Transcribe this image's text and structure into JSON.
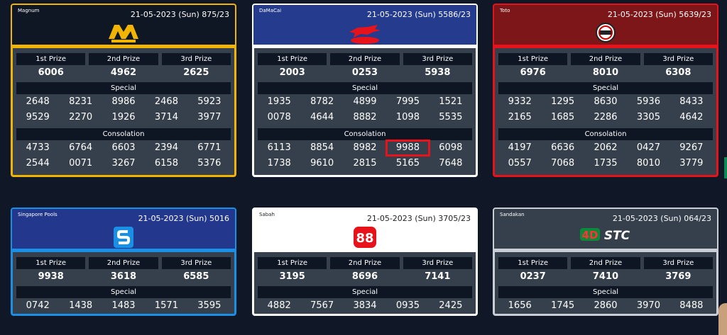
{
  "cards": [
    {
      "key": "magnum",
      "name": "Magnum",
      "date": "21-05-2023 (Sun) 875/23",
      "logo": "magnum",
      "labels": {
        "first": "1st Prize",
        "second": "2nd Prize",
        "third": "3rd Prize",
        "special": "Special",
        "consolation": "Consolation"
      },
      "first": "6006",
      "second": "4962",
      "third": "2625",
      "special": [
        [
          "2648",
          "8231",
          "8986",
          "2468",
          "5923"
        ],
        [
          "9529",
          "2270",
          "1926",
          "3714",
          "3977"
        ]
      ],
      "consolation": [
        [
          "4733",
          "6764",
          "6603",
          "2394",
          "6771"
        ],
        [
          "2544",
          "0071",
          "3267",
          "6158",
          "5376"
        ]
      ]
    },
    {
      "key": "damacai",
      "name": "DaMaCai",
      "date": "21-05-2023 (Sun) 5586/23",
      "logo": "damacai",
      "labels": {
        "first": "1st Prize",
        "second": "2nd Prize",
        "third": "3rd Prize",
        "special": "Special",
        "consolation": "Consolation"
      },
      "first": "2003",
      "second": "0253",
      "third": "5938",
      "special": [
        [
          "1935",
          "8782",
          "4899",
          "7995",
          "1521"
        ],
        [
          "0078",
          "4644",
          "8882",
          "1098",
          "5535"
        ]
      ],
      "consolation": [
        [
          "6113",
          "8854",
          "8982",
          "9988",
          "6098"
        ],
        [
          "1738",
          "9610",
          "2815",
          "5165",
          "7648"
        ]
      ],
      "highlight": "9988"
    },
    {
      "key": "toto",
      "name": "Toto",
      "date": "21-05-2023 (Sun) 5639/23",
      "logo": "toto",
      "labels": {
        "first": "1st Prize",
        "second": "2nd Prize",
        "third": "3rd Prize",
        "special": "Special",
        "consolation": "Consolation"
      },
      "first": "6976",
      "second": "8010",
      "third": "6308",
      "special": [
        [
          "9332",
          "1295",
          "8630",
          "5936",
          "8433"
        ],
        [
          "2165",
          "1685",
          "2286",
          "3305",
          "4642"
        ]
      ],
      "consolation": [
        [
          "4197",
          "6636",
          "2062",
          "0427",
          "9267"
        ],
        [
          "0557",
          "7068",
          "1735",
          "8010",
          "3779"
        ]
      ]
    },
    {
      "key": "sg",
      "name": "Singapore Pools",
      "date": "21-05-2023 (Sun) 5016",
      "logo": "singapore-pools",
      "labels": {
        "first": "1st Prize",
        "second": "2nd Prize",
        "third": "3rd Prize",
        "special": "Special"
      },
      "first": "9938",
      "second": "3618",
      "third": "6585",
      "special": [
        [
          "0742",
          "1438",
          "1483",
          "1571",
          "3595"
        ]
      ]
    },
    {
      "key": "sabah",
      "name": "Sabah",
      "date": "21-05-2023 (Sun) 3705/23",
      "logo": "sabah-88",
      "logo_text": "88",
      "labels": {
        "first": "1st Prize",
        "second": "2nd Prize",
        "third": "3rd Prize",
        "special": "Special"
      },
      "first": "3195",
      "second": "8696",
      "third": "7141",
      "special": [
        [
          "4882",
          "7567",
          "3834",
          "0935",
          "2425"
        ]
      ]
    },
    {
      "key": "sandakan",
      "name": "Sandakan",
      "date": "21-05-2023 (Sun) 064/23",
      "logo": "stc-4d",
      "logo_text": "STC",
      "labels": {
        "first": "1st Prize",
        "second": "2nd Prize",
        "third": "3rd Prize",
        "special": "Special"
      },
      "first": "0237",
      "second": "7410",
      "third": "3769",
      "special": [
        [
          "1656",
          "1745",
          "2860",
          "3970",
          "8488"
        ]
      ]
    }
  ]
}
